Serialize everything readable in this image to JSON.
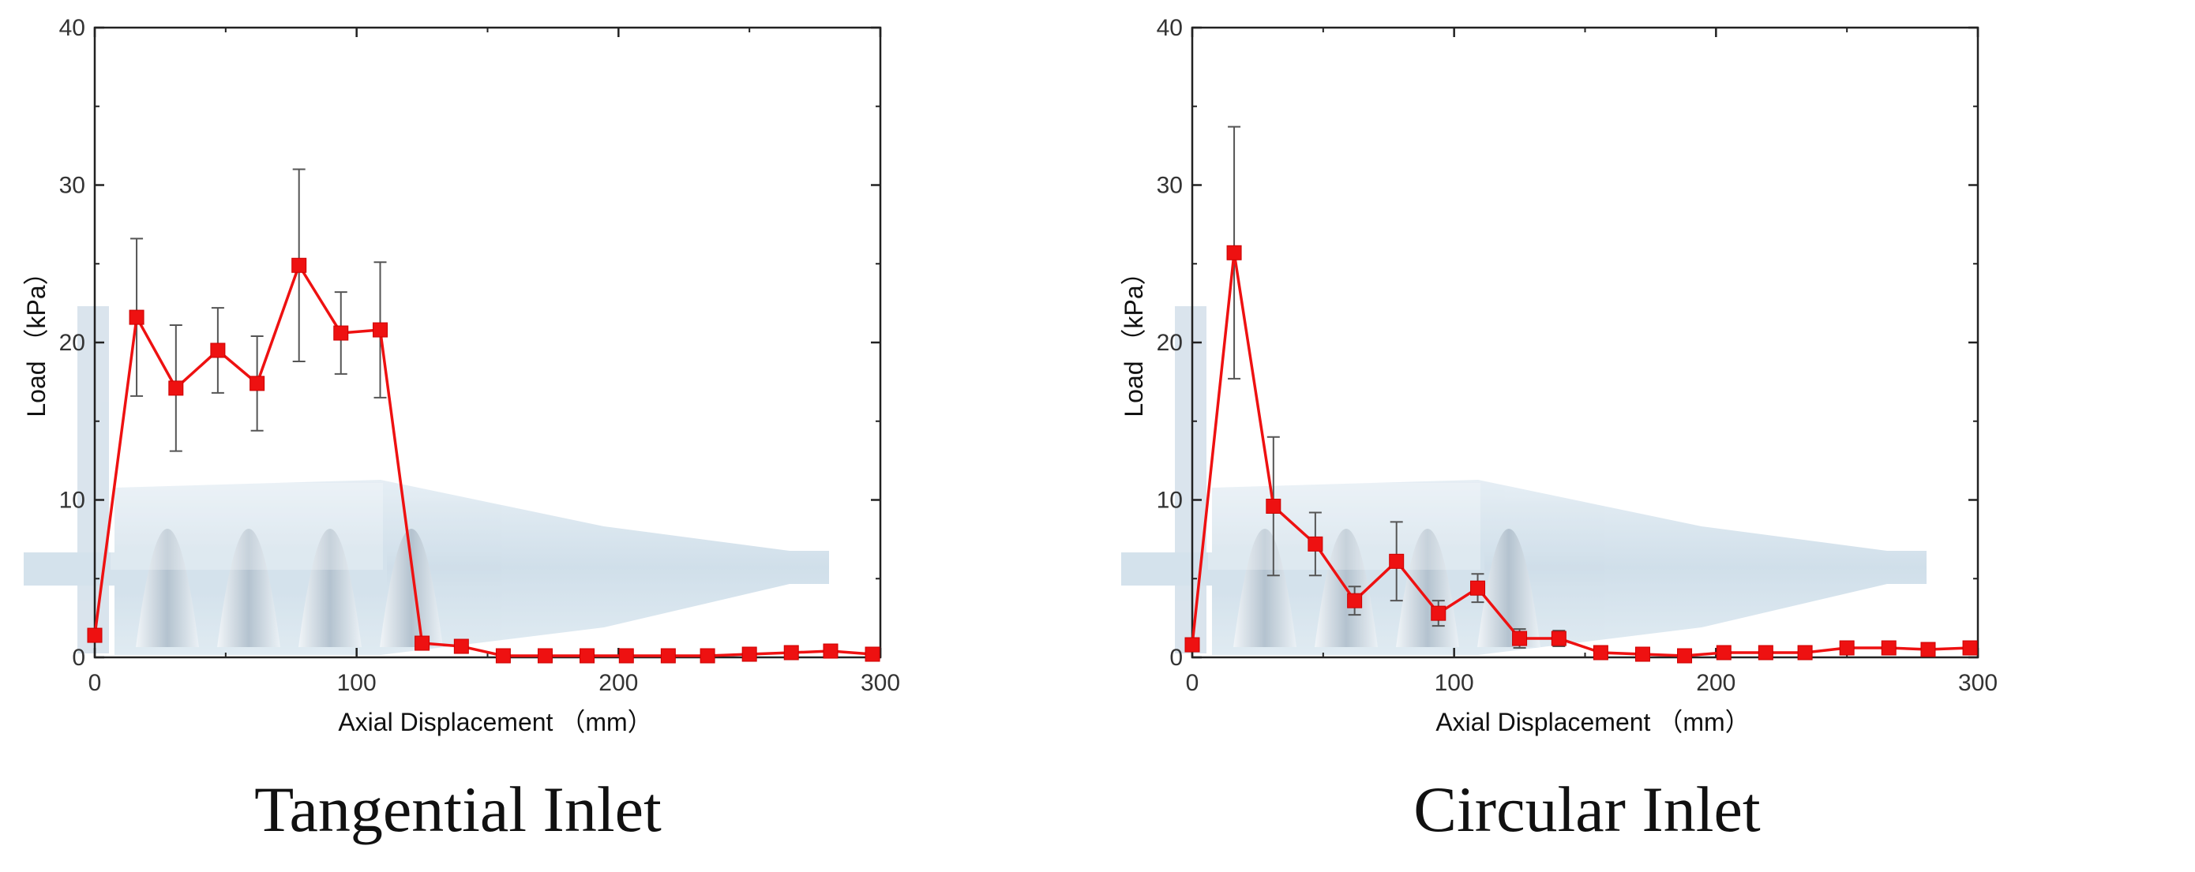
{
  "chart_data": [
    {
      "type": "line",
      "caption": "Tangential Inlet",
      "xlabel": "Axial Displacement （mm）",
      "ylabel": "Load （kPa）",
      "xlim": [
        0,
        300
      ],
      "ylim": [
        0,
        40
      ],
      "xticks": [
        0,
        100,
        200,
        300
      ],
      "yticks": [
        0,
        10,
        20,
        30,
        40
      ],
      "x": [
        0,
        16,
        31,
        47,
        62,
        78,
        94,
        109,
        125,
        140,
        156,
        172,
        188,
        203,
        219,
        234,
        250,
        266,
        281,
        297
      ],
      "y": [
        1.4,
        21.6,
        17.1,
        19.5,
        17.4,
        24.9,
        20.6,
        20.8,
        0.9,
        0.7,
        0.1,
        0.1,
        0.1,
        0.1,
        0.1,
        0.1,
        0.2,
        0.3,
        0.4,
        0.2
      ],
      "error": [
        null,
        5.0,
        4.0,
        2.7,
        3.0,
        6.1,
        2.6,
        4.3,
        null,
        null,
        null,
        null,
        null,
        null,
        null,
        null,
        null,
        null,
        null,
        null
      ],
      "line_color": "#ee1111",
      "marker_color": "#ee1111",
      "error_color": "#555555"
    },
    {
      "type": "line",
      "caption": "Circular Inlet",
      "xlabel": "Axial Displacement （mm）",
      "ylabel": "Load （kPa）",
      "xlim": [
        0,
        300
      ],
      "ylim": [
        0,
        40
      ],
      "xticks": [
        0,
        100,
        200,
        300
      ],
      "yticks": [
        0,
        10,
        20,
        30,
        40
      ],
      "x": [
        0,
        16,
        31,
        47,
        62,
        78,
        94,
        109,
        125,
        140,
        156,
        172,
        188,
        203,
        219,
        234,
        250,
        266,
        281,
        297
      ],
      "y": [
        0.8,
        25.7,
        9.6,
        7.2,
        3.6,
        6.1,
        2.8,
        4.4,
        1.2,
        1.2,
        0.3,
        0.2,
        0.1,
        0.3,
        0.3,
        0.3,
        0.6,
        0.6,
        0.5,
        0.6
      ],
      "error": [
        null,
        8.0,
        4.4,
        2.0,
        0.9,
        2.5,
        0.8,
        0.9,
        0.6,
        0.5,
        null,
        null,
        null,
        null,
        null,
        null,
        null,
        null,
        null,
        null
      ],
      "line_color": "#ee1111",
      "marker_color": "#ee1111",
      "error_color": "#555555"
    }
  ]
}
